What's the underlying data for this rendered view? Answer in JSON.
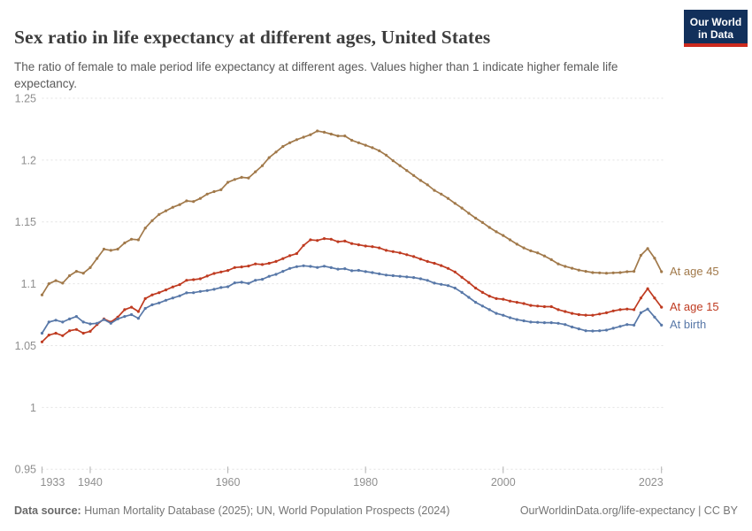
{
  "header": {
    "title": "Sex ratio in life expectancy at different ages, United States",
    "subtitle": "The ratio of female to male period life expectancy at different ages. Values higher than 1 indicate higher female life expectancy."
  },
  "logo": {
    "line1": "Our World",
    "line2": "in Data",
    "bg_color": "#12305B",
    "accent_color": "#CC2A1E"
  },
  "footer": {
    "source_label": "Data source:",
    "source_text": " Human Mortality Database (2025); UN, World Population Prospects (2024)",
    "credit": "OurWorldinData.org/life-expectancy | CC BY"
  },
  "chart_data": {
    "type": "line",
    "title": "Sex ratio in life expectancy at different ages, United States",
    "subtitle": "The ratio of female to male period life expectancy at different ages. Values higher than 1 indicate higher female life expectancy.",
    "xlabel": "",
    "ylabel": "",
    "ylim": [
      0.95,
      1.25
    ],
    "yticks": [
      0.95,
      1.0,
      1.05,
      1.1,
      1.15,
      1.2,
      1.25
    ],
    "ytick_labels": [
      "0.95",
      "1",
      "1.05",
      "1.1",
      "1.15",
      "1.2",
      "1.25"
    ],
    "xticks": [
      1933,
      1940,
      1960,
      1980,
      2000,
      2023
    ],
    "grid": "horizontal-dashed",
    "legend": "end-of-line-labels",
    "years": [
      1933,
      1934,
      1935,
      1936,
      1937,
      1938,
      1939,
      1940,
      1941,
      1942,
      1943,
      1944,
      1945,
      1946,
      1947,
      1948,
      1949,
      1950,
      1951,
      1952,
      1953,
      1954,
      1955,
      1956,
      1957,
      1958,
      1959,
      1960,
      1961,
      1962,
      1963,
      1964,
      1965,
      1966,
      1967,
      1968,
      1969,
      1970,
      1971,
      1972,
      1973,
      1974,
      1975,
      1976,
      1977,
      1978,
      1979,
      1980,
      1981,
      1982,
      1983,
      1984,
      1985,
      1986,
      1987,
      1988,
      1989,
      1990,
      1991,
      1992,
      1993,
      1994,
      1995,
      1996,
      1997,
      1998,
      1999,
      2000,
      2001,
      2002,
      2003,
      2004,
      2005,
      2006,
      2007,
      2008,
      2009,
      2010,
      2011,
      2012,
      2013,
      2014,
      2015,
      2016,
      2017,
      2018,
      2019,
      2020,
      2021,
      2022,
      2023
    ],
    "series": [
      {
        "name": "At age 45",
        "color": "#A1794A",
        "values": [
          1.091,
          1.1,
          1.1025,
          1.1005,
          1.1065,
          1.11,
          1.1085,
          1.113,
          1.1205,
          1.128,
          1.127,
          1.128,
          1.133,
          1.136,
          1.1355,
          1.145,
          1.151,
          1.156,
          1.159,
          1.1618,
          1.164,
          1.167,
          1.1665,
          1.169,
          1.1725,
          1.1745,
          1.176,
          1.182,
          1.1843,
          1.186,
          1.1855,
          1.1905,
          1.1955,
          1.202,
          1.2065,
          1.211,
          1.214,
          1.2165,
          1.2185,
          1.2205,
          1.2235,
          1.2225,
          1.221,
          1.2195,
          1.2195,
          1.216,
          1.214,
          1.212,
          1.21,
          1.2075,
          1.204,
          1.1995,
          1.1955,
          1.1915,
          1.1875,
          1.1835,
          1.18,
          1.1755,
          1.1725,
          1.169,
          1.165,
          1.1612,
          1.157,
          1.153,
          1.1495,
          1.1455,
          1.142,
          1.139,
          1.1355,
          1.132,
          1.129,
          1.1266,
          1.125,
          1.1225,
          1.1195,
          1.116,
          1.114,
          1.1125,
          1.111,
          1.11,
          1.109,
          1.1088,
          1.1085,
          1.1088,
          1.109,
          1.1097,
          1.11,
          1.123,
          1.1285,
          1.1207,
          1.1097
        ]
      },
      {
        "name": "At age 15",
        "color": "#BF3B21",
        "values": [
          1.053,
          1.0585,
          1.06,
          1.058,
          1.062,
          1.063,
          1.06,
          1.0615,
          1.067,
          1.0715,
          1.069,
          1.073,
          1.079,
          1.081,
          1.0775,
          1.088,
          1.091,
          1.0928,
          1.095,
          1.0974,
          1.0993,
          1.1028,
          1.1033,
          1.104,
          1.1062,
          1.1083,
          1.1095,
          1.1107,
          1.1131,
          1.1136,
          1.1143,
          1.116,
          1.1155,
          1.1165,
          1.118,
          1.1203,
          1.1227,
          1.1244,
          1.131,
          1.1355,
          1.135,
          1.1365,
          1.136,
          1.134,
          1.1345,
          1.1325,
          1.1315,
          1.1305,
          1.13,
          1.129,
          1.127,
          1.126,
          1.125,
          1.1235,
          1.122,
          1.12,
          1.118,
          1.1165,
          1.1147,
          1.1124,
          1.1095,
          1.1052,
          1.101,
          1.0965,
          1.093,
          1.09,
          1.088,
          1.0875,
          1.086,
          1.085,
          1.084,
          1.0825,
          1.082,
          1.0815,
          1.0815,
          1.079,
          1.0775,
          1.076,
          1.075,
          1.0746,
          1.0745,
          1.0755,
          1.0765,
          1.078,
          1.079,
          1.0795,
          1.079,
          1.0885,
          1.096,
          1.0885,
          1.081
        ]
      },
      {
        "name": "At birth",
        "color": "#5878A8",
        "values": [
          1.06,
          1.069,
          1.0705,
          1.069,
          1.0715,
          1.0735,
          1.069,
          1.0675,
          1.068,
          1.071,
          1.068,
          1.0715,
          1.0735,
          1.075,
          1.072,
          1.08,
          1.083,
          1.0845,
          1.0866,
          1.0885,
          1.0902,
          1.0926,
          1.0928,
          1.0938,
          1.0945,
          1.0955,
          1.0969,
          1.0976,
          1.1007,
          1.1012,
          1.1003,
          1.1028,
          1.1036,
          1.106,
          1.1076,
          1.11,
          1.1124,
          1.1138,
          1.1145,
          1.114,
          1.1132,
          1.1142,
          1.113,
          1.1118,
          1.1122,
          1.1105,
          1.1108,
          1.1098,
          1.109,
          1.108,
          1.107,
          1.1065,
          1.106,
          1.1055,
          1.105,
          1.104,
          1.1027,
          1.1005,
          1.0995,
          1.0985,
          1.0965,
          1.093,
          1.089,
          1.085,
          1.082,
          1.079,
          1.076,
          1.0745,
          1.0725,
          1.071,
          1.07,
          1.069,
          1.0688,
          1.0685,
          1.0685,
          1.068,
          1.067,
          1.065,
          1.0635,
          1.062,
          1.0618,
          1.062,
          1.0625,
          1.064,
          1.0655,
          1.067,
          1.0665,
          1.0765,
          1.0795,
          1.073,
          1.0665
        ]
      }
    ]
  }
}
